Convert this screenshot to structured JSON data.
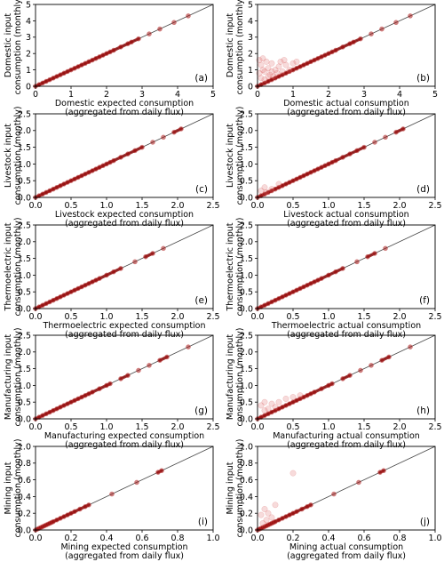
{
  "chart_data": [
    {
      "type": "scatter",
      "panel_label": "(a)",
      "xlabel": [
        "Domestic expected consumption",
        "(aggregated from daily flux)"
      ],
      "ylabel": [
        "Domestic input",
        "consumption (monthly)"
      ],
      "xlim": [
        0,
        5
      ],
      "ylim": [
        0,
        5
      ],
      "xticks": [
        0,
        1,
        2,
        3,
        4,
        5
      ],
      "yticks": [
        0,
        1,
        2,
        3,
        4,
        5
      ],
      "line_points": [
        0,
        0.1,
        0.2,
        0.3,
        0.4,
        0.5,
        0.6,
        0.7,
        0.8,
        0.9,
        1.0,
        1.1,
        1.2,
        1.3,
        1.4,
        1.5,
        1.6,
        1.7,
        1.8,
        1.9,
        2.0,
        2.1,
        2.2,
        2.4,
        2.6,
        2.7,
        2.9,
        3.2,
        3.5,
        3.9,
        4.3
      ],
      "outliers": []
    },
    {
      "type": "scatter",
      "panel_label": "(b)",
      "xlabel": [
        "Domestic actual consumption",
        "(aggregated from daily flux)"
      ],
      "ylabel": [
        "Domestic input",
        "consumption (monthly)"
      ],
      "xlim": [
        0,
        5
      ],
      "ylim": [
        0,
        5
      ],
      "xticks": [
        0,
        1,
        2,
        3,
        4,
        5
      ],
      "yticks": [
        0,
        1,
        2,
        3,
        4,
        5
      ],
      "line_points": [
        0,
        0.1,
        0.2,
        0.3,
        0.4,
        0.5,
        0.6,
        0.7,
        0.8,
        0.9,
        1.0,
        1.1,
        1.2,
        1.3,
        1.4,
        1.5,
        1.6,
        1.7,
        1.8,
        1.9,
        2.0,
        2.1,
        2.2,
        2.4,
        2.6,
        2.7,
        2.9,
        3.2,
        3.5,
        3.9,
        4.3
      ],
      "outliers": [
        [
          0.05,
          1.6
        ],
        [
          0.1,
          1.3
        ],
        [
          0.15,
          1.7
        ],
        [
          0.2,
          0.9
        ],
        [
          0.25,
          1.5
        ],
        [
          0.3,
          1.1
        ],
        [
          0.35,
          0.7
        ],
        [
          0.4,
          1.4
        ],
        [
          0.45,
          0.6
        ],
        [
          0.5,
          1.0
        ],
        [
          0.55,
          0.8
        ],
        [
          0.6,
          1.2
        ],
        [
          0.7,
          0.9
        ],
        [
          0.8,
          1.3
        ],
        [
          0.9,
          1.0
        ],
        [
          1.0,
          1.4
        ],
        [
          1.1,
          1.5
        ],
        [
          0.1,
          0.5
        ],
        [
          0.2,
          0.4
        ],
        [
          0.3,
          0.6
        ],
        [
          0.15,
          1.0
        ],
        [
          0.05,
          0.8
        ],
        [
          0.65,
          1.5
        ],
        [
          0.75,
          1.6
        ],
        [
          0.4,
          0.9
        ]
      ]
    },
    {
      "type": "scatter",
      "panel_label": "(c)",
      "xlabel": [
        "Livestock expected consumption",
        "(aggregated from daily flux)"
      ],
      "ylabel": [
        "Livestock input",
        "consumption (monthly)"
      ],
      "xlim": [
        0,
        2.5
      ],
      "ylim": [
        0,
        2.5
      ],
      "xticks": [
        0.0,
        0.5,
        1.0,
        1.5,
        2.0,
        2.5
      ],
      "yticks": [
        0.0,
        0.5,
        1.0,
        1.5,
        2.0,
        2.5
      ],
      "line_points": [
        0,
        0.05,
        0.1,
        0.15,
        0.2,
        0.25,
        0.3,
        0.35,
        0.4,
        0.45,
        0.5,
        0.55,
        0.6,
        0.65,
        0.7,
        0.75,
        0.8,
        0.85,
        0.9,
        0.95,
        1.0,
        1.05,
        1.1,
        1.2,
        1.3,
        1.4,
        1.5,
        1.65,
        1.8,
        1.95,
        2.05
      ],
      "outliers": []
    },
    {
      "type": "scatter",
      "panel_label": "(d)",
      "xlabel": [
        "Livestock actual consumption",
        "(aggregated from daily flux)"
      ],
      "ylabel": [
        "Livestock input",
        "consumption (monthly)"
      ],
      "xlim": [
        0,
        2.5
      ],
      "ylim": [
        0,
        2.5
      ],
      "xticks": [
        0.0,
        0.5,
        1.0,
        1.5,
        2.0,
        2.5
      ],
      "yticks": [
        0.0,
        0.5,
        1.0,
        1.5,
        2.0,
        2.5
      ],
      "line_points": [
        0,
        0.05,
        0.1,
        0.15,
        0.2,
        0.25,
        0.3,
        0.35,
        0.4,
        0.45,
        0.5,
        0.55,
        0.6,
        0.65,
        0.7,
        0.75,
        0.8,
        0.85,
        0.9,
        0.95,
        1.0,
        1.05,
        1.1,
        1.2,
        1.3,
        1.4,
        1.5,
        1.65,
        1.8,
        1.95,
        2.05
      ],
      "outliers": [
        [
          0.05,
          0.2
        ],
        [
          0.1,
          0.3
        ],
        [
          0.12,
          0.15
        ],
        [
          0.2,
          0.25
        ],
        [
          0.3,
          0.4
        ]
      ]
    },
    {
      "type": "scatter",
      "panel_label": "(e)",
      "xlabel": [
        "Thermoelectric expected consumption",
        "(aggregated from daily flux)"
      ],
      "ylabel": [
        "Thermoelectric input",
        "consumption (monthly)"
      ],
      "xlim": [
        0,
        2.5
      ],
      "ylim": [
        0,
        2.5
      ],
      "xticks": [
        0.0,
        0.5,
        1.0,
        1.5,
        2.0,
        2.5
      ],
      "yticks": [
        0.0,
        0.5,
        1.0,
        1.5,
        2.0,
        2.5
      ],
      "line_points": [
        0,
        0.05,
        0.1,
        0.15,
        0.2,
        0.25,
        0.3,
        0.35,
        0.4,
        0.45,
        0.5,
        0.55,
        0.6,
        0.65,
        0.7,
        0.75,
        0.8,
        0.85,
        0.9,
        1.0,
        1.1,
        1.2,
        1.4,
        1.55,
        1.65,
        1.8
      ],
      "outliers": []
    },
    {
      "type": "scatter",
      "panel_label": "(f)",
      "xlabel": [
        "Thermoelectric actual consumption",
        "(aggregated from daily flux)"
      ],
      "ylabel": [
        "Thermoelectric input",
        "consumption (monthly)"
      ],
      "xlim": [
        0,
        2.5
      ],
      "ylim": [
        0,
        2.5
      ],
      "xticks": [
        0.0,
        0.5,
        1.0,
        1.5,
        2.0,
        2.5
      ],
      "yticks": [
        0.0,
        0.5,
        1.0,
        1.5,
        2.0,
        2.5
      ],
      "line_points": [
        0,
        0.05,
        0.1,
        0.15,
        0.2,
        0.25,
        0.3,
        0.35,
        0.4,
        0.45,
        0.5,
        0.55,
        0.6,
        0.65,
        0.7,
        0.75,
        0.8,
        0.85,
        0.9,
        1.0,
        1.1,
        1.2,
        1.4,
        1.55,
        1.65,
        1.8
      ],
      "outliers": []
    },
    {
      "type": "scatter",
      "panel_label": "(g)",
      "xlabel": [
        "Manufacturing expected consumption",
        "(aggregated from daily flux)"
      ],
      "ylabel": [
        "Manufacturing input",
        "consumption (monthly)"
      ],
      "xlim": [
        0,
        2.5
      ],
      "ylim": [
        0,
        2.5
      ],
      "xticks": [
        0.0,
        0.5,
        1.0,
        1.5,
        2.0,
        2.5
      ],
      "yticks": [
        0.0,
        0.5,
        1.0,
        1.5,
        2.0,
        2.5
      ],
      "line_points": [
        0,
        0.05,
        0.1,
        0.15,
        0.2,
        0.25,
        0.3,
        0.35,
        0.4,
        0.45,
        0.5,
        0.55,
        0.6,
        0.65,
        0.7,
        0.75,
        0.8,
        0.9,
        1.0,
        1.05,
        1.2,
        1.3,
        1.45,
        1.6,
        1.75,
        1.85,
        2.15
      ],
      "outliers": []
    },
    {
      "type": "scatter",
      "panel_label": "(h)",
      "xlabel": [
        "Manufacturing actual consumption",
        "(aggregated from daily flux)"
      ],
      "ylabel": [
        "Manufacturing input",
        "consumption (monthly)"
      ],
      "xlim": [
        0,
        2.5
      ],
      "ylim": [
        0,
        2.5
      ],
      "xticks": [
        0.0,
        0.5,
        1.0,
        1.5,
        2.0,
        2.5
      ],
      "yticks": [
        0.0,
        0.5,
        1.0,
        1.5,
        2.0,
        2.5
      ],
      "line_points": [
        0,
        0.05,
        0.1,
        0.15,
        0.2,
        0.25,
        0.3,
        0.35,
        0.4,
        0.45,
        0.5,
        0.55,
        0.6,
        0.65,
        0.7,
        0.75,
        0.8,
        0.9,
        1.0,
        1.05,
        1.2,
        1.3,
        1.45,
        1.6,
        1.75,
        1.85,
        2.15
      ],
      "outliers": [
        [
          0.05,
          0.4
        ],
        [
          0.1,
          0.5
        ],
        [
          0.15,
          0.3
        ],
        [
          0.2,
          0.45
        ],
        [
          0.3,
          0.5
        ],
        [
          0.4,
          0.6
        ],
        [
          0.5,
          0.65
        ],
        [
          0.25,
          0.35
        ],
        [
          0.6,
          0.7
        ],
        [
          0.1,
          0.25
        ]
      ]
    },
    {
      "type": "scatter",
      "panel_label": "(i)",
      "xlabel": [
        "Mining expected consumption",
        "(aggregated from daily flux)"
      ],
      "ylabel": [
        "Mining input",
        "consumption (monthly)"
      ],
      "xlim": [
        0,
        1.0
      ],
      "ylim": [
        0,
        1.0
      ],
      "xticks": [
        0.0,
        0.2,
        0.4,
        0.6,
        0.8,
        1.0
      ],
      "yticks": [
        0.0,
        0.2,
        0.4,
        0.6,
        0.8,
        1.0
      ],
      "line_points": [
        0,
        0.01,
        0.02,
        0.03,
        0.04,
        0.05,
        0.06,
        0.07,
        0.08,
        0.09,
        0.1,
        0.12,
        0.14,
        0.16,
        0.18,
        0.2,
        0.22,
        0.25,
        0.28,
        0.3,
        0.43,
        0.57,
        0.69,
        0.71
      ],
      "outliers": []
    },
    {
      "type": "scatter",
      "panel_label": "(j)",
      "xlabel": [
        "Mining actual consumption",
        "(aggregated from daily flux)"
      ],
      "ylabel": [
        "Mining input",
        "consumption (monthly)"
      ],
      "xlim": [
        0,
        1.0
      ],
      "ylim": [
        0,
        1.0
      ],
      "xticks": [
        0.0,
        0.2,
        0.4,
        0.6,
        0.8,
        1.0
      ],
      "yticks": [
        0.0,
        0.2,
        0.4,
        0.6,
        0.8,
        1.0
      ],
      "line_points": [
        0,
        0.01,
        0.02,
        0.03,
        0.04,
        0.05,
        0.06,
        0.07,
        0.08,
        0.09,
        0.1,
        0.12,
        0.14,
        0.16,
        0.18,
        0.2,
        0.22,
        0.25,
        0.28,
        0.3,
        0.43,
        0.57,
        0.69,
        0.71
      ],
      "outliers": [
        [
          0.02,
          0.18
        ],
        [
          0.05,
          0.12
        ],
        [
          0.04,
          0.25
        ],
        [
          0.08,
          0.15
        ],
        [
          0.03,
          0.08
        ],
        [
          0.2,
          0.68
        ],
        [
          0.1,
          0.3
        ],
        [
          0.06,
          0.2
        ]
      ]
    }
  ]
}
